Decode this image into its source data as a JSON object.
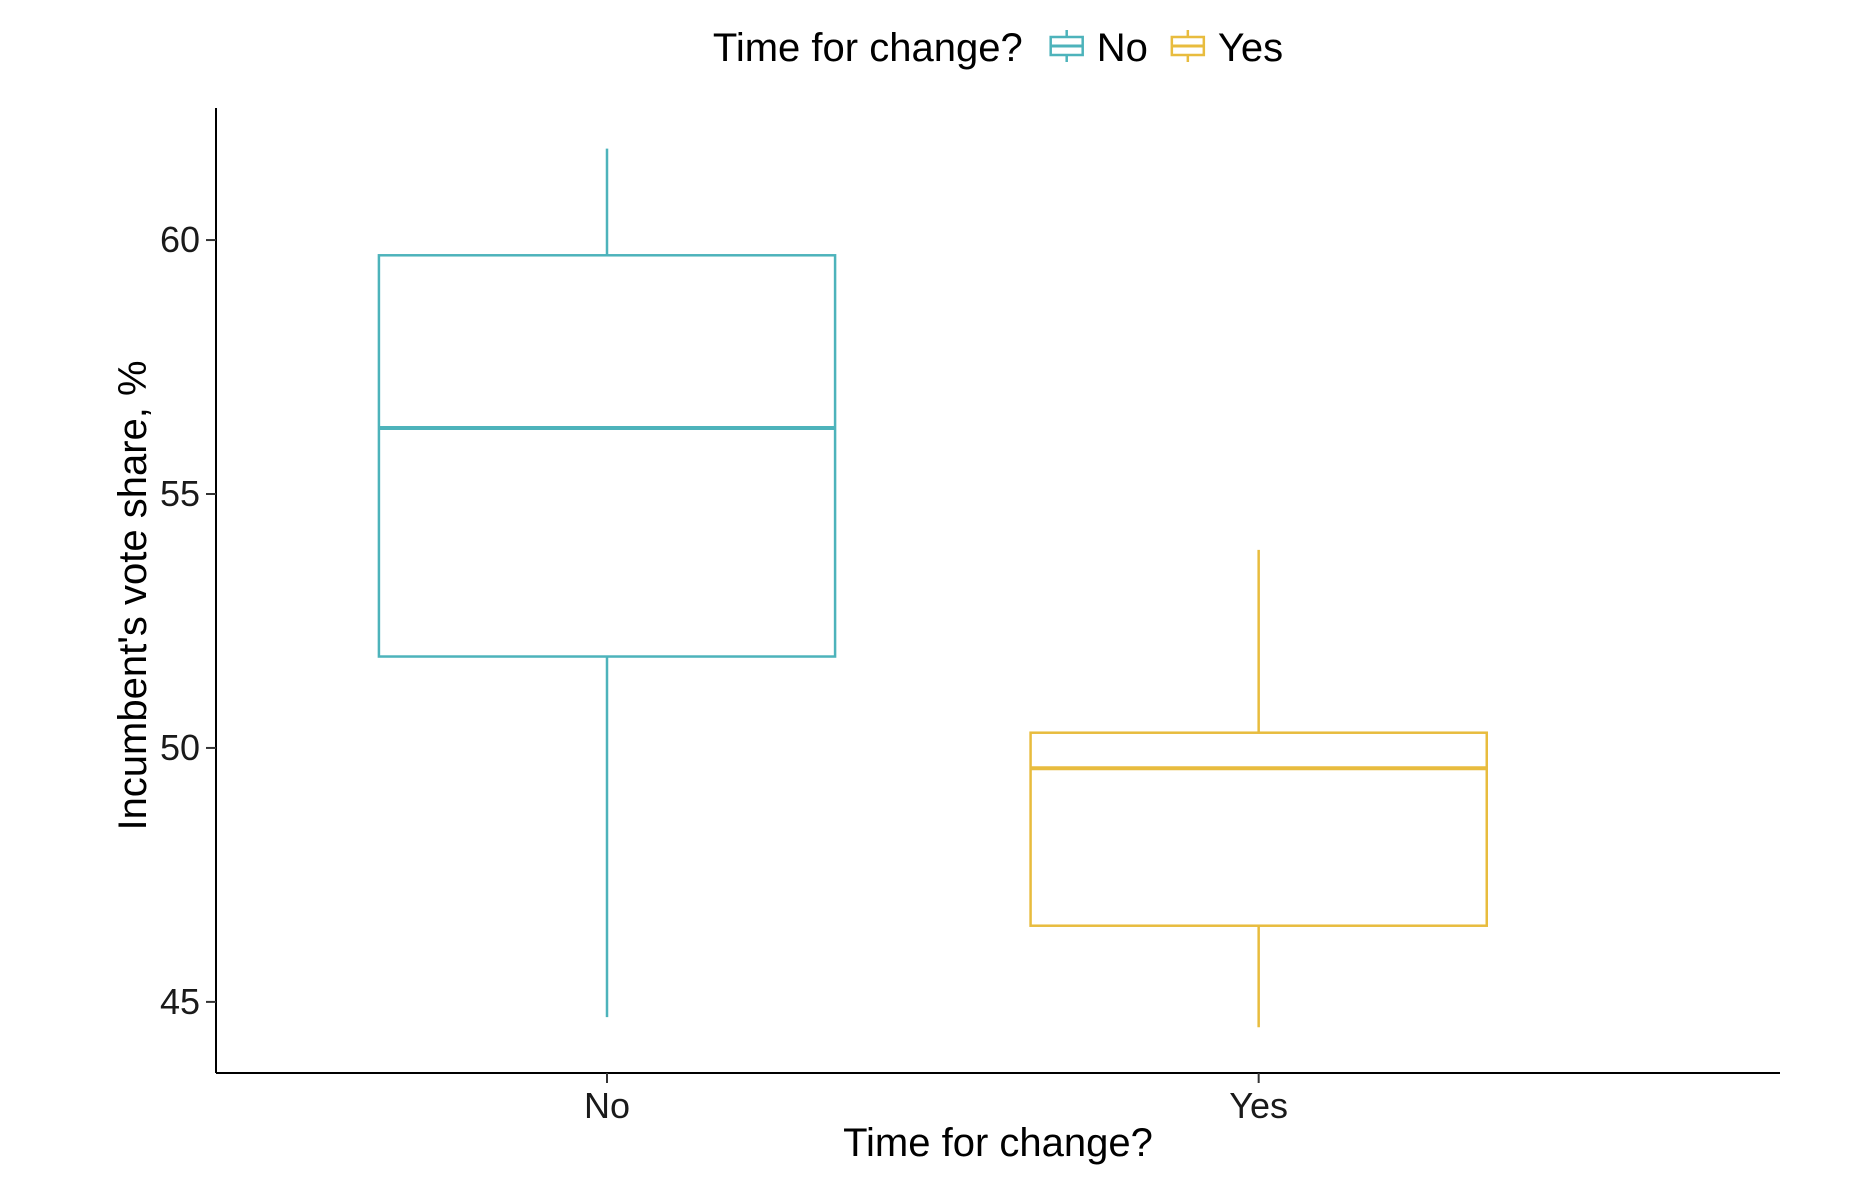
{
  "chart_data": {
    "type": "boxplot",
    "title": "",
    "xlabel": "Time for change?",
    "ylabel": "Incumbent's vote share, %",
    "categories": [
      "No",
      "Yes"
    ],
    "ylim": [
      43.6,
      62.6
    ],
    "yticks": [
      45,
      50,
      55,
      60
    ],
    "grid": false,
    "legend": {
      "title": "Time for change?",
      "position": "top",
      "entries": [
        "No",
        "Yes"
      ]
    },
    "series": [
      {
        "category": "No",
        "color": "#4db3bb",
        "whisker_low": 44.7,
        "q1": 51.8,
        "median": 56.3,
        "q3": 59.7,
        "whisker_high": 61.8
      },
      {
        "category": "Yes",
        "color": "#e8bc3e",
        "whisker_low": 44.5,
        "q1": 46.5,
        "median": 49.6,
        "q3": 50.3,
        "whisker_high": 53.9
      }
    ]
  }
}
